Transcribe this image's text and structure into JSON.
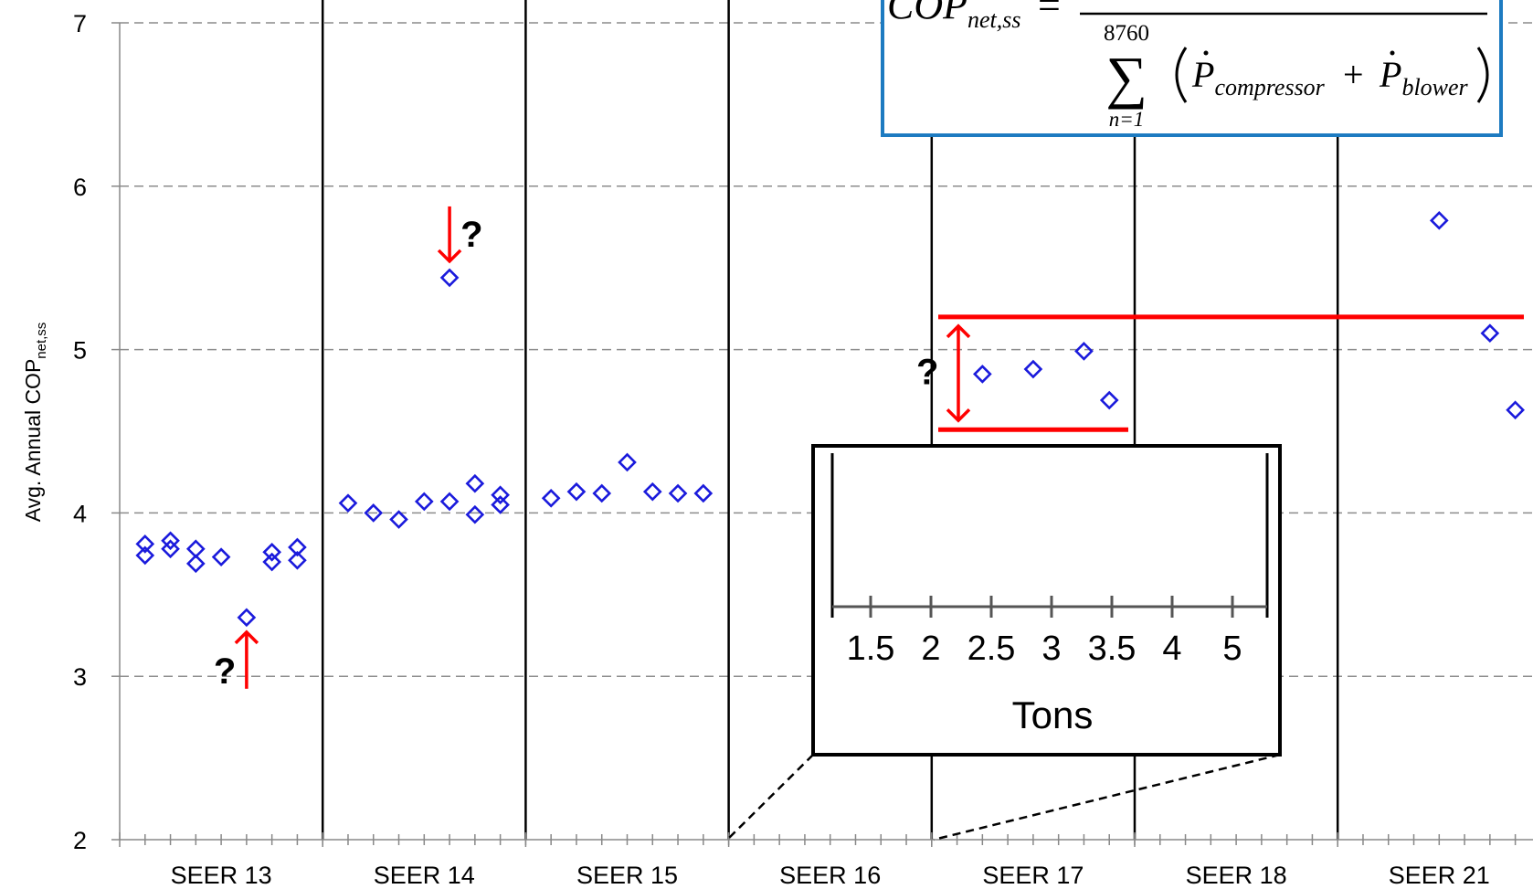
{
  "chart_data": {
    "type": "scatter",
    "title": "",
    "xlabel": "",
    "ylabel": "Avg. Annual COP",
    "ylabel_subscript": "net,ss",
    "ylim": [
      2,
      7
    ],
    "yticks": [
      "2",
      "3",
      "4",
      "5",
      "6",
      "7"
    ],
    "grid": "horizontal dashed",
    "categories": [
      "SEER 13",
      "SEER 14",
      "SEER 15",
      "SEER 16",
      "SEER 17",
      "SEER 18",
      "SEER 21"
    ],
    "slots_per_category": 8,
    "marker": "open diamond",
    "marker_color": "#1a1adc",
    "annotation_color": "#ff0000",
    "points": [
      {
        "category": 0,
        "slot": 1,
        "y": 3.81
      },
      {
        "category": 0,
        "slot": 1,
        "y": 3.74
      },
      {
        "category": 0,
        "slot": 2,
        "y": 3.83
      },
      {
        "category": 0,
        "slot": 2,
        "y": 3.78
      },
      {
        "category": 0,
        "slot": 3,
        "y": 3.78
      },
      {
        "category": 0,
        "slot": 3,
        "y": 3.69
      },
      {
        "category": 0,
        "slot": 4,
        "y": 3.73
      },
      {
        "category": 0,
        "slot": 5,
        "y": 3.36
      },
      {
        "category": 0,
        "slot": 6,
        "y": 3.76
      },
      {
        "category": 0,
        "slot": 6,
        "y": 3.7
      },
      {
        "category": 0,
        "slot": 7,
        "y": 3.79
      },
      {
        "category": 0,
        "slot": 7,
        "y": 3.71
      },
      {
        "category": 1,
        "slot": 1,
        "y": 4.06
      },
      {
        "category": 1,
        "slot": 2,
        "y": 4.0
      },
      {
        "category": 1,
        "slot": 3,
        "y": 3.96
      },
      {
        "category": 1,
        "slot": 4,
        "y": 4.07
      },
      {
        "category": 1,
        "slot": 5,
        "y": 5.44
      },
      {
        "category": 1,
        "slot": 5,
        "y": 4.07
      },
      {
        "category": 1,
        "slot": 6,
        "y": 4.18
      },
      {
        "category": 1,
        "slot": 6,
        "y": 3.99
      },
      {
        "category": 1,
        "slot": 7,
        "y": 4.11
      },
      {
        "category": 1,
        "slot": 7,
        "y": 4.05
      },
      {
        "category": 2,
        "slot": 1,
        "y": 4.09
      },
      {
        "category": 2,
        "slot": 2,
        "y": 4.13
      },
      {
        "category": 2,
        "slot": 3,
        "y": 4.12
      },
      {
        "category": 2,
        "slot": 4,
        "y": 4.31
      },
      {
        "category": 2,
        "slot": 5,
        "y": 4.13
      },
      {
        "category": 2,
        "slot": 6,
        "y": 4.12
      },
      {
        "category": 2,
        "slot": 7,
        "y": 4.12
      },
      {
        "category": 4,
        "slot": 2,
        "y": 4.85
      },
      {
        "category": 4,
        "slot": 4,
        "y": 4.88
      },
      {
        "category": 4,
        "slot": 6,
        "y": 4.99
      },
      {
        "category": 4,
        "slot": 7,
        "y": 4.69
      },
      {
        "category": 6,
        "slot": 4,
        "y": 5.79
      },
      {
        "category": 6,
        "slot": 6,
        "y": 5.1
      },
      {
        "category": 6,
        "slot": 7,
        "y": 4.63
      }
    ],
    "annotations": {
      "question_mark": "?",
      "outlier_low": {
        "category": 0,
        "slot": 5,
        "y": 3.36
      },
      "outlier_high": {
        "category": 1,
        "slot": 5,
        "y": 5.44
      },
      "band_upper_y": 5.2,
      "band_lower_y": 4.51
    },
    "inset": {
      "label": "Tons",
      "ticks": [
        "1.5",
        "2",
        "2.5",
        "3",
        "3.5",
        "4",
        "5"
      ]
    },
    "formula": {
      "lhs_main": "COP",
      "lhs_sub": "net,ss",
      "equals": "=",
      "sum_upper": "8760",
      "sum_lower": "n=1",
      "sum_symbol": "∑",
      "term1": "P",
      "term1_sub": "compressor",
      "plus": "+",
      "term2": "P",
      "term2_sub": "blower"
    }
  }
}
